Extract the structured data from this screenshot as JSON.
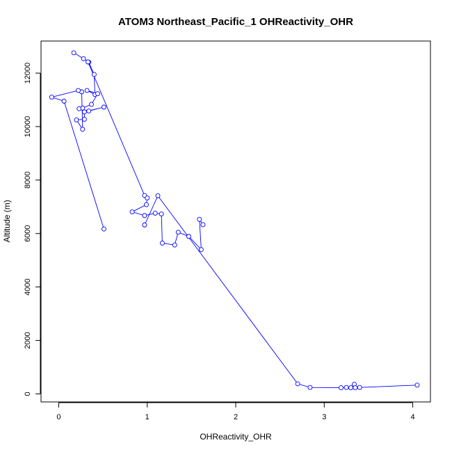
{
  "chart_data": {
    "type": "line",
    "title": "ATOM3 Northeast_Pacific_1 OHReactivity_OHR",
    "xlabel": "OHReactivity_OHR",
    "ylabel": "Altitude (m)",
    "xlim": [
      -0.2,
      4.2
    ],
    "ylim": [
      -300,
      13200
    ],
    "xticks": [
      0,
      1,
      2,
      3,
      4
    ],
    "yticks": [
      0,
      2000,
      4000,
      6000,
      8000,
      10000,
      12000
    ],
    "grid": false,
    "line_color": "#0000ff",
    "series": [
      {
        "values": [
          [
            0.17,
            12760
          ],
          [
            0.28,
            12540
          ],
          [
            0.34,
            12410
          ],
          [
            0.4,
            11950
          ],
          [
            0.41,
            11200
          ],
          [
            0.32,
            11350
          ],
          [
            0.44,
            11230
          ],
          [
            0.37,
            10830
          ],
          [
            0.27,
            10690
          ],
          [
            0.23,
            10670
          ],
          [
            0.34,
            10580
          ],
          [
            0.51,
            10730
          ],
          [
            0.29,
            10550
          ],
          [
            0.29,
            10270
          ],
          [
            0.2,
            10250
          ],
          [
            0.27,
            9900
          ],
          [
            0.26,
            11300
          ],
          [
            0.22,
            11350
          ],
          [
            -0.08,
            11100
          ],
          [
            0.06,
            10950
          ],
          [
            0.51,
            6170
          ]
        ]
      },
      {
        "values": [
          [
            0.33,
            12420
          ],
          [
            0.97,
            7420
          ],
          [
            1.0,
            7330
          ],
          [
            0.99,
            7080
          ],
          [
            0.83,
            6810
          ],
          [
            0.97,
            6670
          ],
          [
            1.09,
            6760
          ],
          [
            1.16,
            6730
          ],
          [
            1.17,
            5640
          ],
          [
            1.31,
            5570
          ],
          [
            1.35,
            6050
          ],
          [
            1.47,
            5890
          ],
          [
            1.61,
            5400
          ],
          [
            1.59,
            6530
          ],
          [
            1.63,
            6330
          ]
        ]
      },
      {
        "values": [
          [
            0.97,
            6320
          ],
          [
            1.12,
            7410
          ],
          [
            2.7,
            380
          ],
          [
            2.84,
            240
          ],
          [
            3.19,
            230
          ],
          [
            3.25,
            240
          ],
          [
            3.3,
            230
          ],
          [
            3.34,
            360
          ],
          [
            3.35,
            230
          ],
          [
            3.4,
            240
          ],
          [
            4.05,
            330
          ]
        ]
      }
    ]
  }
}
